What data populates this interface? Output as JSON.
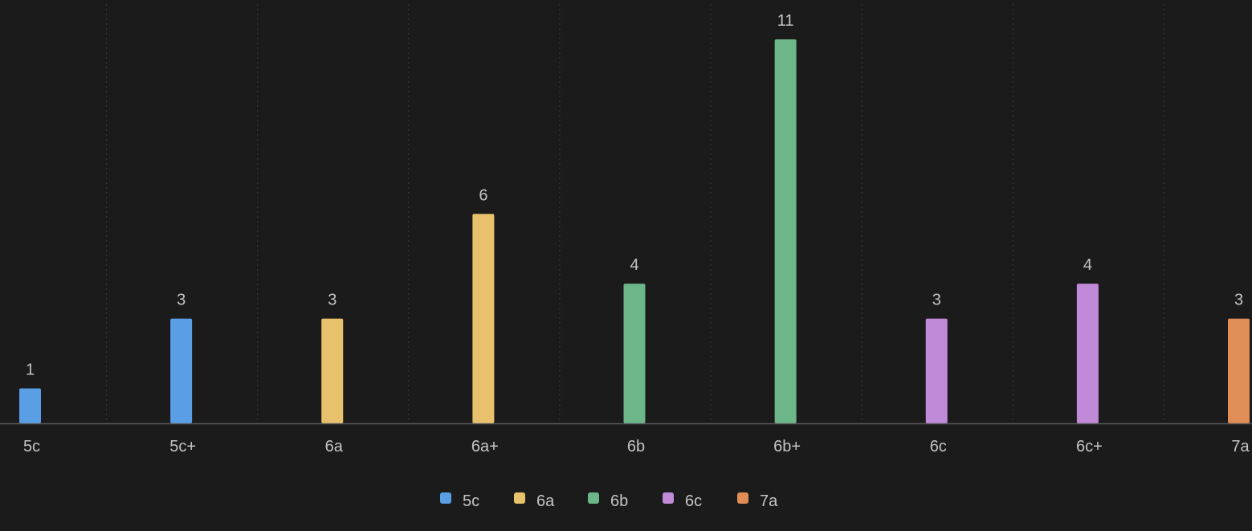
{
  "chart_data": {
    "type": "bar",
    "categories": [
      "5c",
      "5c+",
      "6a",
      "6a+",
      "6b",
      "6b+",
      "6c",
      "6c+",
      "7a"
    ],
    "values": [
      1,
      3,
      3,
      6,
      4,
      11,
      3,
      4,
      3
    ],
    "bar_groups": [
      "5c",
      "5c",
      "6a",
      "6a",
      "6b",
      "6b",
      "6c",
      "6c",
      "7a"
    ],
    "ylim": [
      0,
      12
    ],
    "grid": true,
    "show_value_labels": true,
    "legend": {
      "position": "bottom",
      "entries": [
        {
          "name": "5c",
          "color": "#5a9ee6"
        },
        {
          "name": "6a",
          "color": "#e8c16c"
        },
        {
          "name": "6b",
          "color": "#6db68a"
        },
        {
          "name": "6c",
          "color": "#c08ad9"
        },
        {
          "name": "7a",
          "color": "#e08e55"
        }
      ]
    }
  }
}
